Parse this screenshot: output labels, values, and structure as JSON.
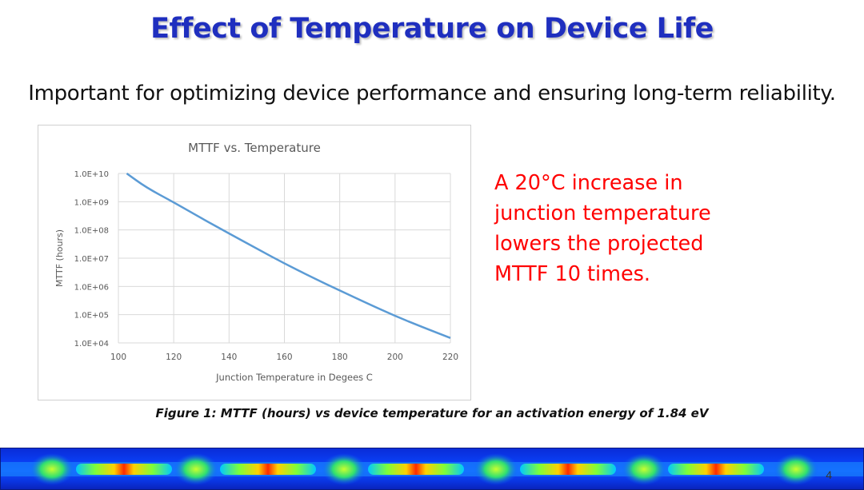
{
  "slide": {
    "title": "Effect of Temperature on Device Life",
    "subtitle": "Important for optimizing device performance and ensuring long-term reliability.",
    "callout_lines": [
      "A 20°C increase in",
      "junction temperature",
      "lowers the projected",
      "MTTF 10 times."
    ],
    "caption": "Figure 1: MTTF (hours) vs device temperature for an activation energy of 1.84 eV",
    "page_number": "4",
    "colors": {
      "title": "#1f2fbf",
      "callout": "#ff0000",
      "line": "#5b9bd5"
    }
  },
  "chart_data": {
    "type": "line",
    "title": "MTTF vs. Temperature",
    "xlabel": "Junction Temperature in Degees C",
    "ylabel": "MTTF (hours)",
    "xlim": [
      100,
      220
    ],
    "x_ticks": [
      100,
      120,
      140,
      160,
      180,
      200,
      220
    ],
    "y_scale": "log",
    "ylim": [
      10000,
      10000000000
    ],
    "y_ticks": [
      10000,
      100000,
      1000000,
      10000000,
      100000000,
      1000000000,
      10000000000
    ],
    "y_tick_labels": [
      "1.0E+04",
      "1.0E+05",
      "1.0E+06",
      "1.0E+07",
      "1.0E+08",
      "1.0E+09",
      "1.0E+10"
    ],
    "grid": true,
    "series": [
      {
        "x": [
          103,
          110,
          120,
          130,
          140,
          150,
          160,
          170,
          180,
          190,
          200,
          210,
          220
        ],
        "y": [
          10000000000,
          3200000000,
          950000000,
          260000000,
          75000000,
          22000000,
          6500000,
          2100000,
          720000,
          250000,
          90000,
          36000,
          15000
        ]
      }
    ]
  }
}
